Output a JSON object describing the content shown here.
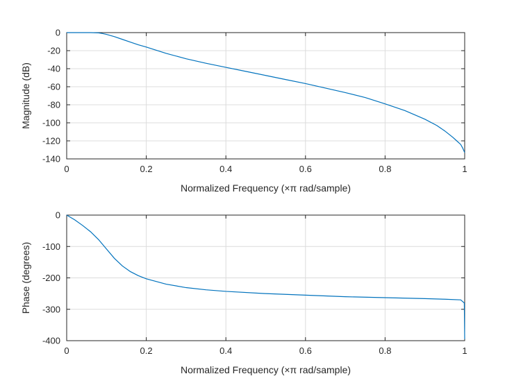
{
  "colors": {
    "line": "#0072bd",
    "axis": "#262626",
    "grid": "#dcdcdc"
  },
  "chart_data": [
    {
      "id": "magnitude",
      "type": "line",
      "xlabel": "Normalized Frequency (×π rad/sample)",
      "ylabel": "Magnitude (dB)",
      "xlim": [
        0,
        1
      ],
      "ylim": [
        -140,
        0
      ],
      "xticks": [
        0,
        0.2,
        0.4,
        0.6,
        0.8,
        1
      ],
      "xtick_labels": [
        "0",
        "0.2",
        "0.4",
        "0.6",
        "0.8",
        "1"
      ],
      "yticks": [
        0,
        -20,
        -40,
        -60,
        -80,
        -100,
        -120,
        -140
      ],
      "ytick_labels": [
        "0",
        "-20",
        "-40",
        "-60",
        "-80",
        "-100",
        "-120",
        "-140"
      ],
      "grid": true,
      "series": [
        {
          "x": [
            0,
            0.02,
            0.04,
            0.06,
            0.08,
            0.09,
            0.1,
            0.12,
            0.14,
            0.16,
            0.18,
            0.2,
            0.25,
            0.3,
            0.35,
            0.4,
            0.45,
            0.5,
            0.55,
            0.6,
            0.65,
            0.7,
            0.75,
            0.8,
            0.85,
            0.9,
            0.93,
            0.95,
            0.97,
            0.98,
            0.99,
            0.995,
            1.0
          ],
          "y": [
            0,
            0,
            0,
            0,
            -0.3,
            -1,
            -2,
            -4.5,
            -7.5,
            -10.5,
            -13.5,
            -16,
            -23,
            -29,
            -34,
            -38.5,
            -43,
            -47.5,
            -52,
            -56.5,
            -61.5,
            -66.5,
            -72,
            -79,
            -86.5,
            -96,
            -103,
            -109,
            -116,
            -120,
            -124,
            -128,
            -133
          ]
        }
      ]
    },
    {
      "id": "phase",
      "type": "line",
      "xlabel": "Normalized Frequency (×π rad/sample)",
      "ylabel": "Phase (degrees)",
      "xlim": [
        0,
        1
      ],
      "ylim": [
        -400,
        0
      ],
      "xticks": [
        0,
        0.2,
        0.4,
        0.6,
        0.8,
        1
      ],
      "xtick_labels": [
        "0",
        "0.2",
        "0.4",
        "0.6",
        "0.8",
        "1"
      ],
      "yticks": [
        0,
        -100,
        -200,
        -300,
        -400
      ],
      "ytick_labels": [
        "0",
        "-100",
        "-200",
        "-300",
        "-400"
      ],
      "grid": true,
      "series": [
        {
          "x": [
            0,
            0.02,
            0.04,
            0.06,
            0.08,
            0.1,
            0.12,
            0.14,
            0.16,
            0.18,
            0.2,
            0.25,
            0.3,
            0.35,
            0.4,
            0.5,
            0.6,
            0.7,
            0.8,
            0.9,
            0.95,
            0.99,
            0.999,
            1.0
          ],
          "y": [
            0,
            -15,
            -33,
            -53,
            -78,
            -108,
            -138,
            -162,
            -180,
            -193,
            -203,
            -220,
            -231,
            -238,
            -243,
            -250,
            -255,
            -260,
            -263,
            -266,
            -268,
            -270,
            -280,
            -395
          ]
        }
      ]
    }
  ]
}
